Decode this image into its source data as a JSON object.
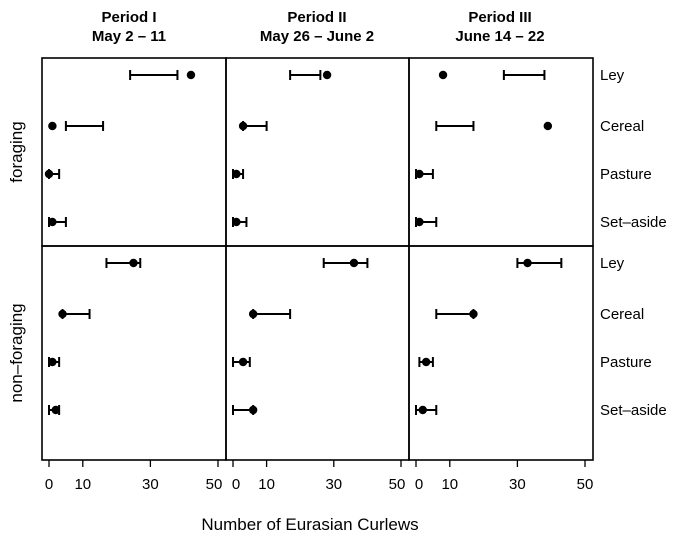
{
  "chart_data": {
    "type": "dot-interval",
    "xlabel": "Number of Eurasian Curlews",
    "xlim": [
      -1.5,
      50
    ],
    "xticks": [
      0,
      10,
      30,
      50
    ],
    "xtick_labels": [
      "0",
      "10",
      "30",
      "50"
    ],
    "panels": [
      "Period I\nMay 2 – 11",
      "Period II\nMay 26 – June 2",
      "Period III\nJune 14 – 22"
    ],
    "rows": [
      "foraging",
      "non–foraging"
    ],
    "categories": [
      "Ley",
      "Cereal",
      "Pasture",
      "Set–aside"
    ],
    "data": [
      [
        [
          {
            "point": 42,
            "interval": [
              24,
              38
            ]
          },
          {
            "point": 1,
            "interval": [
              5,
              16
            ]
          },
          {
            "point": 0,
            "interval": [
              0,
              3
            ]
          },
          {
            "point": 1,
            "interval": [
              0,
              5
            ]
          }
        ],
        [
          {
            "point": 28,
            "interval": [
              17,
              26
            ]
          },
          {
            "point": 3,
            "interval": [
              3,
              10
            ]
          },
          {
            "point": 1,
            "interval": [
              0,
              3
            ]
          },
          {
            "point": 1,
            "interval": [
              0,
              4
            ]
          }
        ],
        [
          {
            "point": 8,
            "interval": [
              26,
              38
            ]
          },
          {
            "point": 39,
            "interval": [
              6,
              17
            ]
          },
          {
            "point": 1,
            "interval": [
              0,
              5
            ]
          },
          {
            "point": 1,
            "interval": [
              0,
              6
            ]
          }
        ]
      ],
      [
        [
          {
            "point": 25,
            "interval": [
              17,
              27
            ]
          },
          {
            "point": 4,
            "interval": [
              4,
              12
            ]
          },
          {
            "point": 1,
            "interval": [
              0,
              3
            ]
          },
          {
            "point": 2,
            "interval": [
              0,
              3
            ]
          }
        ],
        [
          {
            "point": 36,
            "interval": [
              27,
              40
            ]
          },
          {
            "point": 6,
            "interval": [
              6,
              17
            ]
          },
          {
            "point": 3,
            "interval": [
              0,
              5
            ]
          },
          {
            "point": 6,
            "interval": [
              0,
              6
            ]
          }
        ],
        [
          {
            "point": 33,
            "interval": [
              30,
              43
            ]
          },
          {
            "point": 17,
            "interval": [
              6,
              17
            ]
          },
          {
            "point": 3,
            "interval": [
              1,
              5
            ]
          },
          {
            "point": 2,
            "interval": [
              0,
              6
            ]
          }
        ]
      ]
    ],
    "grid": false,
    "legend": "none"
  }
}
